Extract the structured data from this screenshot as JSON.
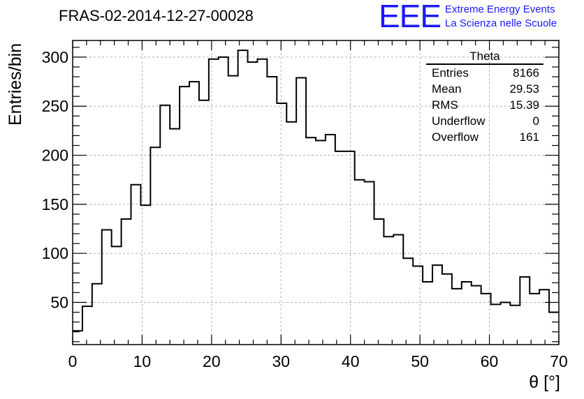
{
  "header": {
    "title": "FRAS-02-2014-12-27-00028",
    "logo_mark": "EEE",
    "logo_line1": "Extreme Energy Events",
    "logo_line2": "La Scienza nelle Scuole",
    "logo_color": "#1a1aff"
  },
  "stats_box": {
    "title": "Theta",
    "rows": [
      {
        "label": "Entries",
        "value": "8166"
      },
      {
        "label": "Mean",
        "value": "29.53"
      },
      {
        "label": "RMS",
        "value": "15.39"
      },
      {
        "label": "Underflow",
        "value": "0"
      },
      {
        "label": "Overflow",
        "value": "161"
      }
    ]
  },
  "chart_data": {
    "type": "histogram",
    "xlabel": "θ [°]",
    "ylabel": "Entries/bin",
    "xlim": [
      0,
      70
    ],
    "ylim": [
      7,
      317
    ],
    "grid": true,
    "bin_width": 1.4,
    "bin_edges_start": 0,
    "values": [
      21,
      46,
      69,
      124,
      107,
      135,
      170,
      149,
      208,
      251,
      227,
      270,
      275,
      256,
      298,
      300,
      281,
      307,
      295,
      298,
      280,
      253,
      234,
      279,
      218,
      215,
      221,
      204,
      204,
      175,
      173,
      135,
      117,
      119,
      95,
      87,
      71,
      88,
      79,
      64,
      71,
      67,
      59,
      48,
      50,
      47,
      76,
      59,
      63,
      40
    ],
    "x_ticks": [
      "0",
      "10",
      "20",
      "30",
      "40",
      "50",
      "60",
      "70"
    ],
    "y_ticks": [
      "50",
      "100",
      "150",
      "200",
      "250",
      "300"
    ],
    "line_color": "#000000"
  }
}
